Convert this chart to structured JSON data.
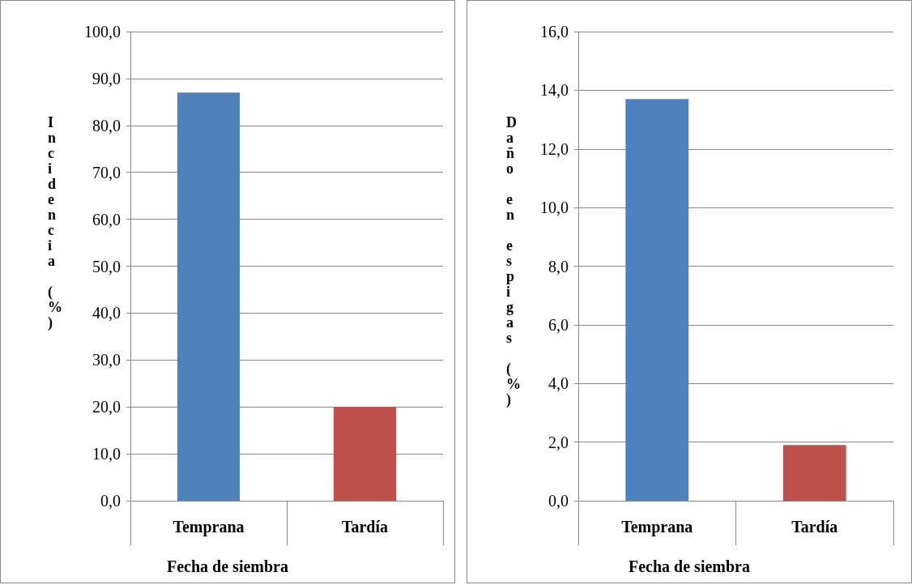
{
  "chart_data": [
    {
      "type": "bar",
      "ylabel": "Incidencia (%)",
      "xlabel": "Fecha de siembra",
      "categories": [
        "Temprana",
        "Tardía"
      ],
      "values": [
        87.0,
        20.0
      ],
      "colors": [
        "#4f81bd",
        "#c0504d"
      ],
      "ylim": [
        0,
        100
      ],
      "yticks": [
        {
          "value": 0,
          "label": "0,0"
        },
        {
          "value": 10,
          "label": "10,0"
        },
        {
          "value": 20,
          "label": "20,0"
        },
        {
          "value": 30,
          "label": "30,0"
        },
        {
          "value": 40,
          "label": "40,0"
        },
        {
          "value": 50,
          "label": "50,0"
        },
        {
          "value": 60,
          "label": "60,0"
        },
        {
          "value": 70,
          "label": "70,0"
        },
        {
          "value": 80,
          "label": "80,0"
        },
        {
          "value": 90,
          "label": "90,0"
        },
        {
          "value": 100,
          "label": "100,0"
        }
      ],
      "grid": "y"
    },
    {
      "type": "bar",
      "ylabel": "Daño en espigas (%)",
      "xlabel": "Fecha de siembra",
      "categories": [
        "Temprana",
        "Tardía"
      ],
      "values": [
        13.7,
        1.9
      ],
      "colors": [
        "#4f81bd",
        "#c0504d"
      ],
      "ylim": [
        0,
        16
      ],
      "yticks": [
        {
          "value": 0,
          "label": "0,0"
        },
        {
          "value": 2,
          "label": "2,0"
        },
        {
          "value": 4,
          "label": "4,0"
        },
        {
          "value": 6,
          "label": "6,0"
        },
        {
          "value": 8,
          "label": "8,0"
        },
        {
          "value": 10,
          "label": "10,0"
        },
        {
          "value": 12,
          "label": "12,0"
        },
        {
          "value": 14,
          "label": "14,0"
        },
        {
          "value": 16,
          "label": "16,0"
        }
      ],
      "grid": "y"
    }
  ]
}
